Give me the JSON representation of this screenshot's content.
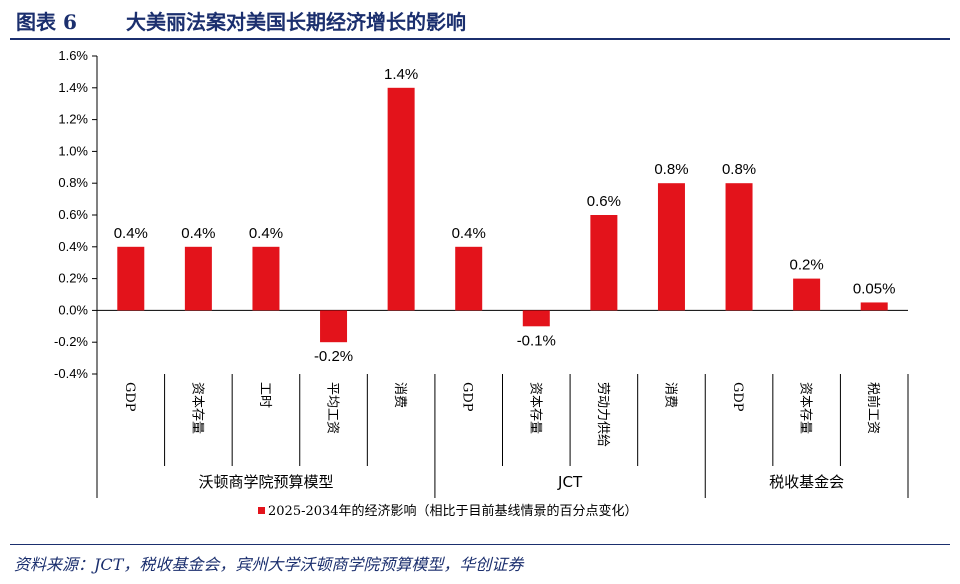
{
  "header": {
    "figure_label": "图表 6",
    "figure_title": "大美丽法案对美国长期经济增长的影响"
  },
  "footer": {
    "source": "资料来源：JCT，税收基金会，宾州大学沃顿商学院预算模型，华创证券"
  },
  "colors": {
    "bar": "#e3131b",
    "title": "#1b2f6e"
  },
  "chart_data": {
    "type": "bar",
    "title": "",
    "xlabel": "",
    "ylabel": "",
    "ylim": [
      -0.004,
      0.016
    ],
    "ytick_step": 0.002,
    "ytick_labels": [
      "-0.4%",
      "-0.2%",
      "0.0%",
      "0.2%",
      "0.4%",
      "0.6%",
      "0.8%",
      "1.0%",
      "1.2%",
      "1.4%",
      "1.6%"
    ],
    "grid": false,
    "legend": {
      "position": "bottom",
      "label": "2025-2034年的经济影响（相比于目前基线情景的百分点变化）"
    },
    "groups": [
      {
        "name": "沃顿商学院预算模型",
        "span": 5
      },
      {
        "name": "JCT",
        "span": 4
      },
      {
        "name": "税收基金会",
        "span": 3
      }
    ],
    "categories": [
      "GDP",
      "资本存量",
      "工时",
      "平均工资",
      "消费",
      "GDP",
      "资本存量",
      "劳动力供给",
      "消费",
      "GDP",
      "资本存量",
      "税前工资"
    ],
    "series": [
      {
        "name": "2025-2034年的经济影响（相比于目前基线情景的百分点变化）",
        "values": [
          0.004,
          0.004,
          0.004,
          -0.002,
          0.014,
          0.004,
          -0.001,
          0.006,
          0.008,
          0.008,
          0.002,
          0.0005
        ],
        "labels": [
          "0.4%",
          "0.4%",
          "0.4%",
          "-0.2%",
          "1.4%",
          "0.4%",
          "-0.1%",
          "0.6%",
          "0.8%",
          "0.8%",
          "0.2%",
          "0.05%"
        ]
      }
    ]
  }
}
